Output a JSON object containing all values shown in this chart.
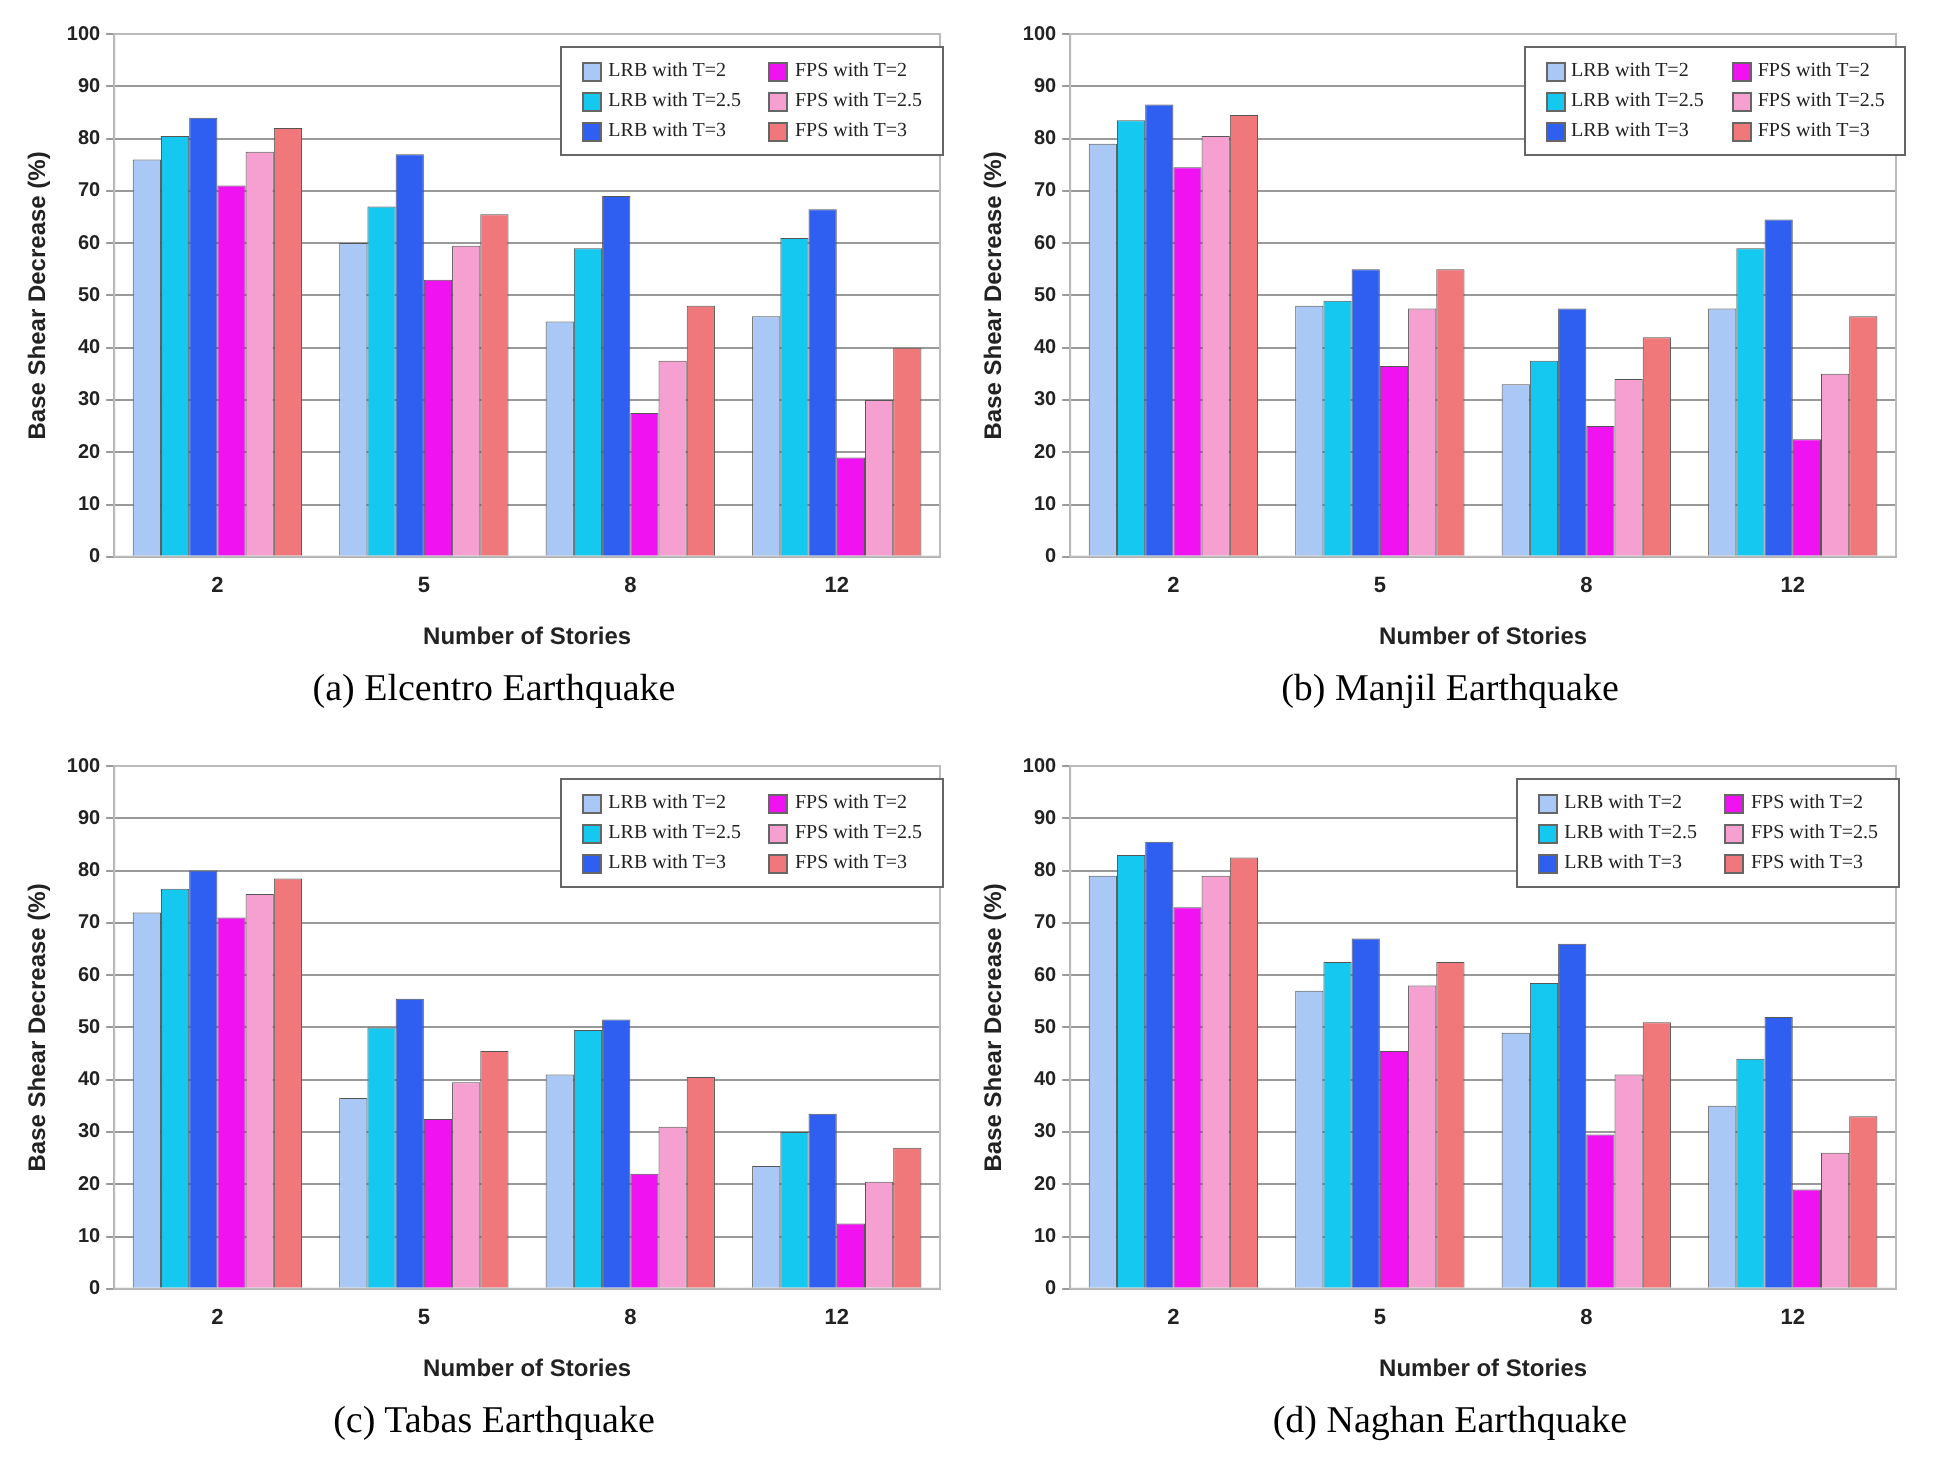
{
  "chart_data": [
    {
      "type": "bar",
      "title": "(a) Elcentro Earthquake",
      "xlabel": "Number of Stories",
      "ylabel": "Base Shear Decrease (%)",
      "categories": [
        "2",
        "5",
        "8",
        "12"
      ],
      "ylim": [
        0,
        100
      ],
      "yticks": [
        0,
        10,
        20,
        30,
        40,
        50,
        60,
        70,
        80,
        90,
        100
      ],
      "grid": "y",
      "legend": "top right",
      "series": [
        {
          "name": "LRB with T=2",
          "color": "#a9c8f5",
          "values": [
            76,
            60,
            45,
            46
          ]
        },
        {
          "name": "LRB with T=2.5",
          "color": "#14c8f0",
          "values": [
            80.5,
            67,
            59,
            61
          ]
        },
        {
          "name": "LRB with T=3",
          "color": "#2e5ff0",
          "values": [
            84,
            77,
            69,
            66.5
          ]
        },
        {
          "name": "FPS with T=2",
          "color": "#f012f0",
          "values": [
            71,
            53,
            27.5,
            19
          ]
        },
        {
          "name": "FPS with T=2.5",
          "color": "#f5a0d0",
          "values": [
            77.5,
            59.5,
            37.5,
            30
          ]
        },
        {
          "name": "FPS with T=3",
          "color": "#f0787a",
          "values": [
            82,
            65.5,
            48,
            40
          ]
        }
      ]
    },
    {
      "type": "bar",
      "title": "(b) Manjil Earthquake",
      "xlabel": "Number of Stories",
      "ylabel": "Base Shear Decrease (%)",
      "categories": [
        "2",
        "5",
        "8",
        "12"
      ],
      "ylim": [
        0,
        100
      ],
      "yticks": [
        0,
        10,
        20,
        30,
        40,
        50,
        60,
        70,
        80,
        90,
        100
      ],
      "grid": "y",
      "legend": "top",
      "series": [
        {
          "name": "LRB with T=2",
          "color": "#a9c8f5",
          "values": [
            79,
            48,
            33,
            47.5
          ]
        },
        {
          "name": "LRB with T=2.5",
          "color": "#14c8f0",
          "values": [
            83.5,
            49,
            37.5,
            59
          ]
        },
        {
          "name": "LRB with T=3",
          "color": "#2e5ff0",
          "values": [
            86.5,
            55,
            47.5,
            64.5
          ]
        },
        {
          "name": "FPS with T=2",
          "color": "#f012f0",
          "values": [
            74.5,
            36.5,
            25,
            22.5
          ]
        },
        {
          "name": "FPS with T=2.5",
          "color": "#f5a0d0",
          "values": [
            80.5,
            47.5,
            34,
            35
          ]
        },
        {
          "name": "FPS with T=3",
          "color": "#f0787a",
          "values": [
            84.5,
            55,
            42,
            46
          ]
        }
      ]
    },
    {
      "type": "bar",
      "title": "(c) Tabas Earthquake",
      "xlabel": "Number of Stories",
      "ylabel": "Base Shear Decrease (%)",
      "categories": [
        "2",
        "5",
        "8",
        "12"
      ],
      "ylim": [
        0,
        100
      ],
      "yticks": [
        0,
        10,
        20,
        30,
        40,
        50,
        60,
        70,
        80,
        90,
        100
      ],
      "grid": "y",
      "legend": "top right",
      "series": [
        {
          "name": "LRB with T=2",
          "color": "#a9c8f5",
          "values": [
            72,
            36.5,
            41,
            23.5
          ]
        },
        {
          "name": "LRB with T=2.5",
          "color": "#14c8f0",
          "values": [
            76.5,
            50,
            49.5,
            30
          ]
        },
        {
          "name": "LRB with T=3",
          "color": "#2e5ff0",
          "values": [
            80,
            55.5,
            51.5,
            33.5
          ]
        },
        {
          "name": "FPS with T=2",
          "color": "#f012f0",
          "values": [
            71,
            32.5,
            22,
            12.5
          ]
        },
        {
          "name": "FPS with T=2.5",
          "color": "#f5a0d0",
          "values": [
            75.5,
            39.5,
            31,
            20.5
          ]
        },
        {
          "name": "FPS with T=3",
          "color": "#f0787a",
          "values": [
            78.5,
            45.5,
            40.5,
            27
          ]
        }
      ]
    },
    {
      "type": "bar",
      "title": "(d) Naghan Earthquake",
      "xlabel": "Number of Stories",
      "ylabel": "Base Shear Decrease (%)",
      "categories": [
        "2",
        "5",
        "8",
        "12"
      ],
      "ylim": [
        0,
        100
      ],
      "yticks": [
        0,
        10,
        20,
        30,
        40,
        50,
        60,
        70,
        80,
        90,
        100
      ],
      "grid": "y",
      "legend": "top right",
      "series": [
        {
          "name": "LRB with T=2",
          "color": "#a9c8f5",
          "values": [
            79,
            57,
            49,
            35
          ]
        },
        {
          "name": "LRB with T=2.5",
          "color": "#14c8f0",
          "values": [
            83,
            62.5,
            58.5,
            44
          ]
        },
        {
          "name": "LRB with T=3",
          "color": "#2e5ff0",
          "values": [
            85.5,
            67,
            66,
            52
          ]
        },
        {
          "name": "FPS with T=2",
          "color": "#f012f0",
          "values": [
            73,
            45.5,
            29.5,
            19
          ]
        },
        {
          "name": "FPS with T=2.5",
          "color": "#f5a0d0",
          "values": [
            79,
            58,
            41,
            26
          ]
        },
        {
          "name": "FPS with T=3",
          "color": "#f0787a",
          "values": [
            82.5,
            62.5,
            51,
            33
          ]
        }
      ]
    }
  ]
}
